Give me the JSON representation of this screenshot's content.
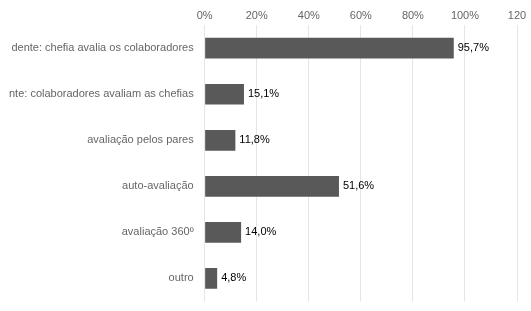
{
  "chart_data": {
    "type": "bar",
    "orientation": "horizontal",
    "categories": [
      "outro",
      "avaliação 360º",
      "auto-avaliação",
      "avaliação pelos pares",
      "nte: colaboradores avaliam as chefias",
      "dente: chefia avalia os colaboradores"
    ],
    "values": [
      4.8,
      14.0,
      51.6,
      11.8,
      15.1,
      95.7
    ],
    "value_labels": [
      "4,8%",
      "14,0%",
      "51,6%",
      "11,8%",
      "15,1%",
      "95,7%"
    ],
    "data_labels": true,
    "color": "#595959",
    "xlim": [
      0,
      120
    ],
    "xticks": [
      {
        "value": 0,
        "label": "0%"
      },
      {
        "value": 20,
        "label": "20%"
      },
      {
        "value": 40,
        "label": "40%"
      },
      {
        "value": 60,
        "label": "60%"
      },
      {
        "value": 80,
        "label": "80%"
      },
      {
        "value": 100,
        "label": "100%"
      },
      {
        "value": 120,
        "label": "120"
      }
    ],
    "grid": true
  }
}
